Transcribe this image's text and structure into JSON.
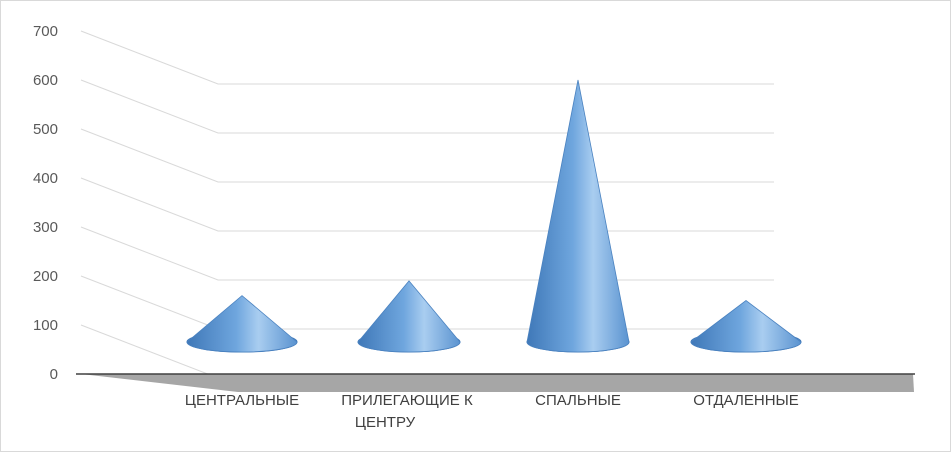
{
  "chart_data": {
    "type": "bar",
    "style": "3d-cone",
    "categories": [
      [
        "ЦЕНТРАЛЬНЫЕ"
      ],
      [
        "ПРИЛЕГАЮЩИЕ К",
        "ЦЕНТРУ"
      ],
      [
        "СПАЛЬНЫЕ"
      ],
      [
        "ОТДАЛЕННЫЕ"
      ]
    ],
    "values": [
      160,
      190,
      600,
      150
    ],
    "title": "",
    "xlabel": "",
    "ylabel": "",
    "ylim": [
      0,
      700
    ],
    "yticks": [
      0,
      100,
      200,
      300,
      400,
      500,
      600,
      700
    ],
    "grid": true,
    "legend": "none",
    "colors": {
      "cone_light": "#a9cdf0",
      "cone_mid": "#6fa6de",
      "cone_dark": "#3f78b8",
      "floor": "#a6a6a6",
      "gridline": "#d9d9d9",
      "axis": "#404040"
    }
  }
}
